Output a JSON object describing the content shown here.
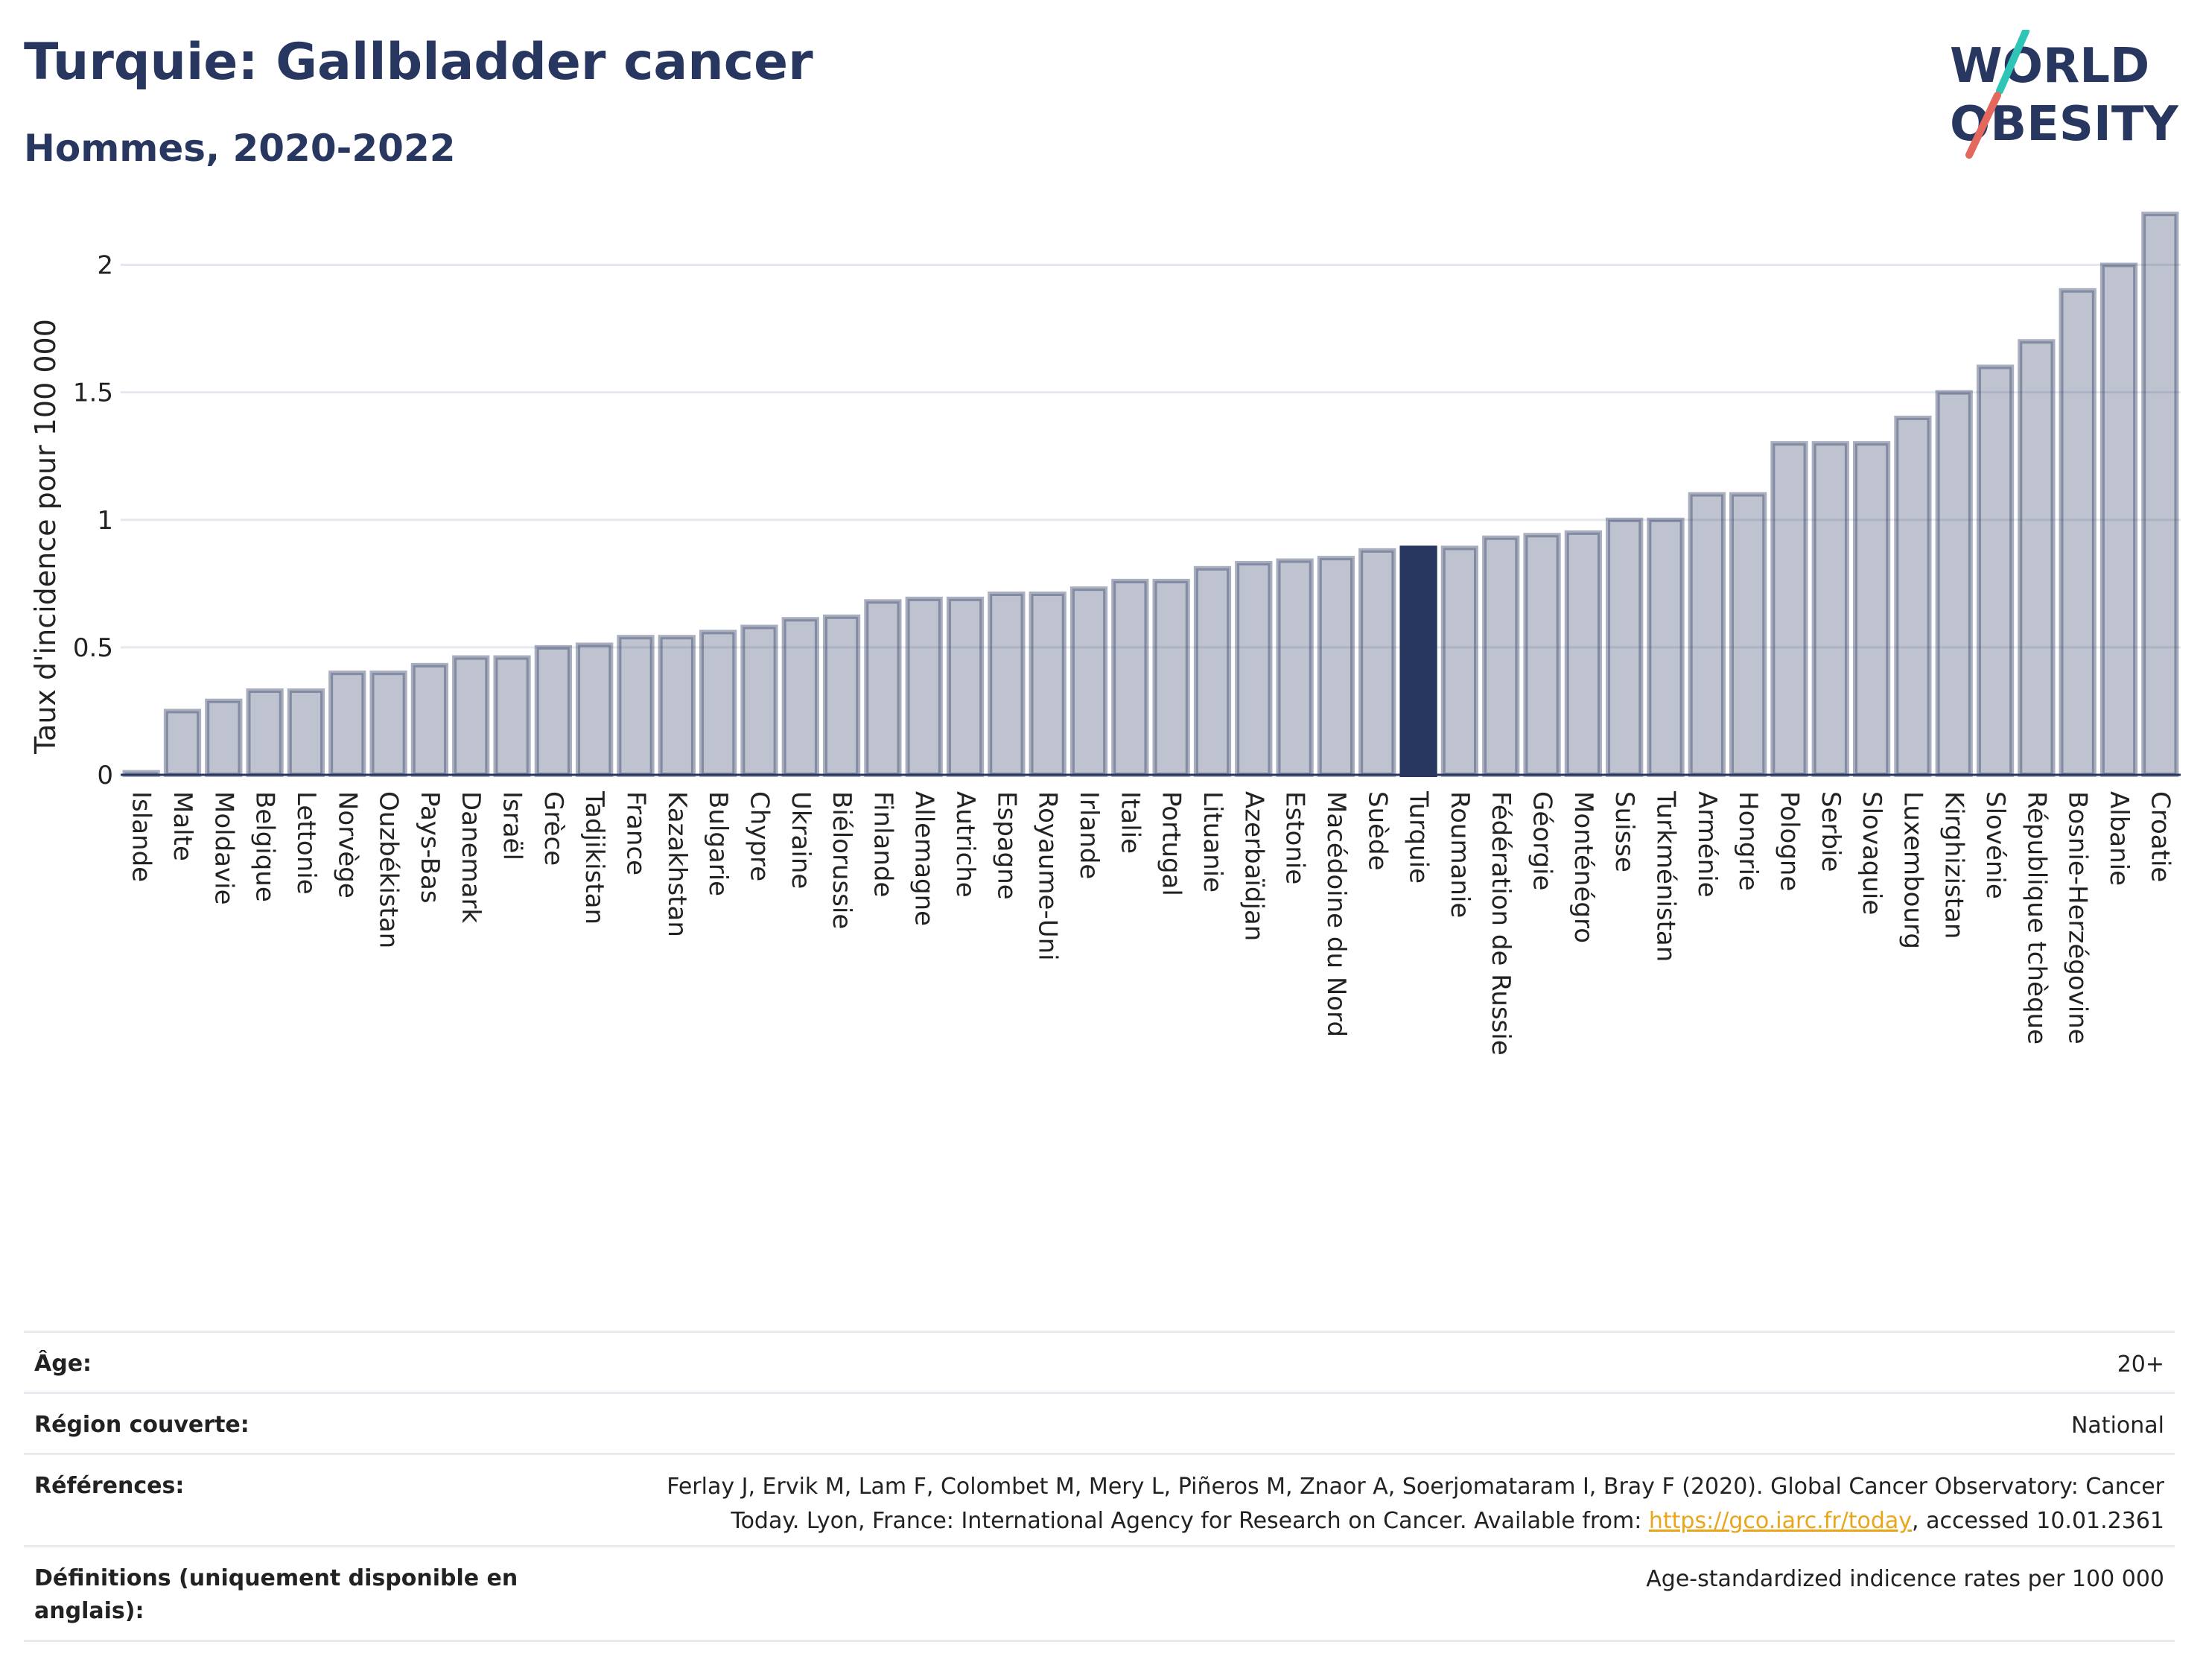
{
  "header": {
    "title": "Turquie: Gallbladder cancer",
    "subtitle": "Hommes, 2020-2022"
  },
  "logo": {
    "line1": "WORLD",
    "line2": "OBESITY"
  },
  "colors": {
    "bar": "#283760",
    "bar_faded": "#283760",
    "highlight": "#283760",
    "grid": "#e6e8ef",
    "accent_teal": "#2ec4b6",
    "accent_red": "#e4685d"
  },
  "chart_data": {
    "type": "bar",
    "ylabel": "Taux d'incidence pour 100 000",
    "ylim": [
      0,
      2.25
    ],
    "yticks": [
      0,
      0.5,
      1,
      1.5,
      2
    ],
    "ytick_labels": [
      "0",
      "0.5",
      "1",
      "1.5",
      "2"
    ],
    "highlight": "Turquie",
    "categories": [
      "Islande",
      "Malte",
      "Moldavie",
      "Belgique",
      "Lettonie",
      "Norvège",
      "Ouzbékistan",
      "Pays-Bas",
      "Danemark",
      "Israël",
      "Grèce",
      "Tadjikistan",
      "France",
      "Kazakhstan",
      "Bulgarie",
      "Chypre",
      "Ukraine",
      "Biélorussie",
      "Finlande",
      "Allemagne",
      "Autriche",
      "Espagne",
      "Royaume-Uni",
      "Irlande",
      "Italie",
      "Portugal",
      "Lituanie",
      "Azerbaïdjan",
      "Estonie",
      "Macédoine du Nord",
      "Suède",
      "Turquie",
      "Roumanie",
      "Fédération de Russie",
      "Géorgie",
      "Monténégro",
      "Suisse",
      "Turkménistan",
      "Arménie",
      "Hongrie",
      "Pologne",
      "Serbie",
      "Slovaquie",
      "Luxembourg",
      "Kirghizistan",
      "Slovénie",
      "République tchèque",
      "Bosnie-Herzégovine",
      "Albanie",
      "Croatie"
    ],
    "values": [
      0.01,
      0.25,
      0.29,
      0.33,
      0.33,
      0.4,
      0.4,
      0.43,
      0.46,
      0.46,
      0.5,
      0.51,
      0.54,
      0.54,
      0.56,
      0.58,
      0.61,
      0.62,
      0.68,
      0.69,
      0.69,
      0.71,
      0.71,
      0.73,
      0.76,
      0.76,
      0.81,
      0.83,
      0.84,
      0.85,
      0.88,
      0.89,
      0.89,
      0.93,
      0.94,
      0.95,
      1.0,
      1.0,
      1.1,
      1.1,
      1.3,
      1.3,
      1.3,
      1.4,
      1.5,
      1.6,
      1.7,
      1.9,
      2.0,
      2.2
    ],
    "grid": true
  },
  "meta": {
    "age_label": "Âge:",
    "age_value": "20+",
    "region_label": "Région couverte:",
    "region_value": "National",
    "ref_label": "Références:",
    "ref_line1": "Ferlay J, Ervik M, Lam F, Colombet M, Mery L, Piñeros M, Znaor A, Soerjomataram I, Bray F (2020). Global Cancer Observatory: Cancer",
    "ref_line2_pre": "Today. Lyon, France: International Agency for Research on Cancer. Available from: ",
    "ref_link": "https://gco.iarc.fr/today",
    "ref_line2_post": ", accessed 10.01.2361",
    "def_label_1": "Définitions (uniquement disponible en",
    "def_label_2": "anglais):",
    "def_value": "Age-standardized indicence rates per 100 000"
  }
}
